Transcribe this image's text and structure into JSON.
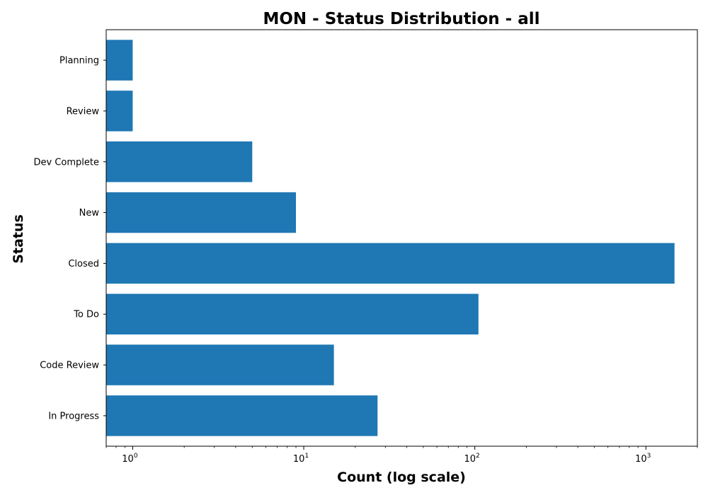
{
  "chart_data": {
    "type": "bar",
    "orientation": "horizontal",
    "title": "MON - Status Distribution - all",
    "xlabel": "Count (log scale)",
    "ylabel": "Status",
    "x_scale": "log",
    "xlim": [
      0.7,
      2000
    ],
    "categories": [
      "In Progress",
      "Code Review",
      "To Do",
      "Closed",
      "New",
      "Dev Complete",
      "Review",
      "Planning"
    ],
    "values": [
      27,
      15,
      105,
      1470,
      9,
      5,
      1,
      1
    ],
    "x_major_ticks": [
      {
        "base": "10",
        "exp": "0",
        "value": 1
      },
      {
        "base": "10",
        "exp": "1",
        "value": 10
      },
      {
        "base": "10",
        "exp": "2",
        "value": 100
      },
      {
        "base": "10",
        "exp": "3",
        "value": 1000
      }
    ],
    "bar_color": "#1f77b4",
    "grid": false,
    "legend": "none"
  }
}
